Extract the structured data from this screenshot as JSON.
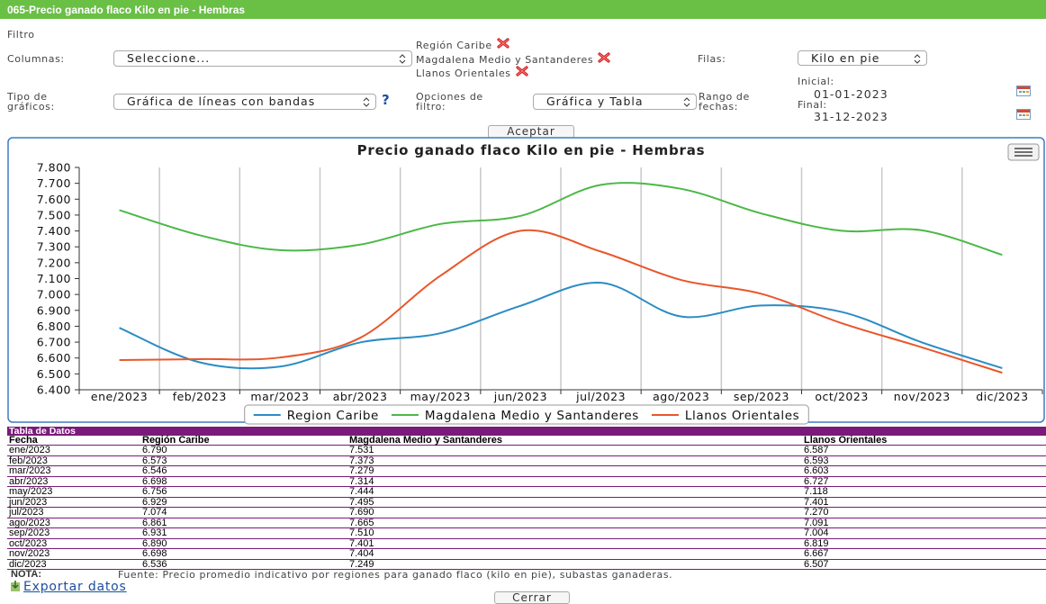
{
  "header": {
    "title": "065-Precio ganado flaco Kilo en pie - Hembras"
  },
  "filter": {
    "label": "Filtro",
    "columns_label": "Columnas:",
    "columns_value": "Seleccione...",
    "selected_regions": [
      "Región Caribe",
      "Magdalena Medio y Santanderes",
      "Llanos Orientales"
    ],
    "rows_label": "Filas:",
    "rows_value": "Kilo en pie",
    "chart_type_label": "Tipo de gráficos:",
    "chart_type_value": "Gráfica de líneas con bandas",
    "help": "?",
    "filter_options_label": "Opciones de filtro:",
    "filter_options_value": "Gráfica y Tabla",
    "date_range_label": "Rango de fechas:",
    "initial_label": "Inicial:",
    "initial_value": "01-01-2023",
    "final_label": "Final:",
    "final_value": "31-12-2023",
    "accept": "Aceptar"
  },
  "chart_data": {
    "type": "line",
    "title": "Precio ganado flaco Kilo en pie - Hembras",
    "categories": [
      "ene/2023",
      "feb/2023",
      "mar/2023",
      "abr/2023",
      "may/2023",
      "jun/2023",
      "jul/2023",
      "ago/2023",
      "sep/2023",
      "oct/2023",
      "nov/2023",
      "dic/2023"
    ],
    "series": [
      {
        "name": "Region Caribe",
        "color": "#2b8cc4",
        "values": [
          6.79,
          6.573,
          6.546,
          6.698,
          6.756,
          6.929,
          7.074,
          6.861,
          6.931,
          6.89,
          6.698,
          6.536
        ]
      },
      {
        "name": "Magdalena Medio y Santanderes",
        "color": "#4cb848",
        "values": [
          7.531,
          7.373,
          7.279,
          7.314,
          7.444,
          7.495,
          7.69,
          7.665,
          7.51,
          7.401,
          7.404,
          7.249
        ]
      },
      {
        "name": "Llanos Orientales",
        "color": "#e8572a",
        "values": [
          6.587,
          6.593,
          6.603,
          6.727,
          7.118,
          7.401,
          7.27,
          7.091,
          7.004,
          6.819,
          6.667,
          6.507
        ]
      }
    ],
    "ylim": [
      6.4,
      7.8
    ],
    "yticks": [
      {
        "value": 6.4,
        "label": "6.400"
      },
      {
        "value": 6.5,
        "label": "6.500"
      },
      {
        "value": 6.6,
        "label": "6.600"
      },
      {
        "value": 6.7,
        "label": "6.700"
      },
      {
        "value": 6.8,
        "label": "6.800"
      },
      {
        "value": 6.9,
        "label": "6.900"
      },
      {
        "value": 7.0,
        "label": "7.000"
      },
      {
        "value": 7.1,
        "label": "7.100"
      },
      {
        "value": 7.2,
        "label": "7.200"
      },
      {
        "value": 7.3,
        "label": "7.300"
      },
      {
        "value": 7.4,
        "label": "7.400"
      },
      {
        "value": 7.5,
        "label": "7.500"
      },
      {
        "value": 7.6,
        "label": "7.600"
      },
      {
        "value": 7.7,
        "label": "7.700"
      },
      {
        "value": 7.8,
        "label": "7.800"
      }
    ],
    "legend": "bottom"
  },
  "table": {
    "title": "Tabla de Datos",
    "columns": [
      "Fecha",
      "Región Caribe",
      "Magdalena Medio y Santanderes",
      "Llanos Orientales"
    ],
    "rows": [
      [
        "ene/2023",
        "6.790",
        "7.531",
        "6.587"
      ],
      [
        "feb/2023",
        "6.573",
        "7.373",
        "6.593"
      ],
      [
        "mar/2023",
        "6.546",
        "7.279",
        "6.603"
      ],
      [
        "abr/2023",
        "6.698",
        "7.314",
        "6.727"
      ],
      [
        "may/2023",
        "6.756",
        "7.444",
        "7.118"
      ],
      [
        "jun/2023",
        "6.929",
        "7.495",
        "7.401"
      ],
      [
        "jul/2023",
        "7.074",
        "7.690",
        "7.270"
      ],
      [
        "ago/2023",
        "6.861",
        "7.665",
        "7.091"
      ],
      [
        "sep/2023",
        "6.931",
        "7.510",
        "7.004"
      ],
      [
        "oct/2023",
        "6.890",
        "7.401",
        "6.819"
      ],
      [
        "nov/2023",
        "6.698",
        "7.404",
        "6.667"
      ],
      [
        "dic/2023",
        "6.536",
        "7.249",
        "6.507"
      ]
    ]
  },
  "note": {
    "label": "NOTA:",
    "text": "Fuente: Precio promedio indicativo por regiones para ganado flaco (kilo en pie), subastas ganaderas."
  },
  "export": "Exportar datos",
  "close": "Cerrar"
}
